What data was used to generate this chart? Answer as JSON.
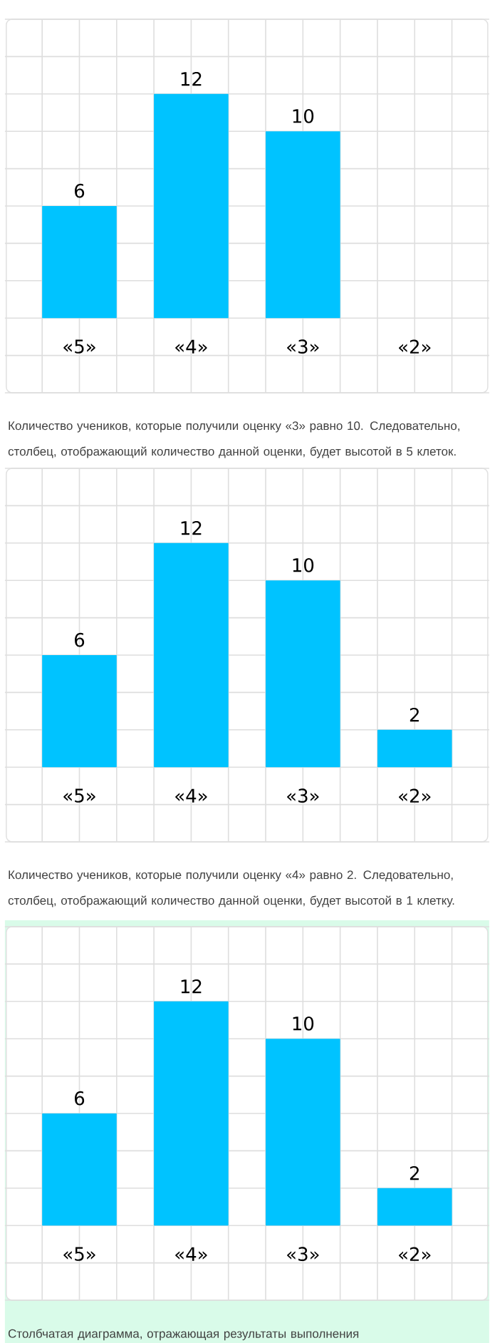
{
  "chart_data": [
    {
      "type": "bar",
      "categories": [
        "«5»",
        "«4»",
        "«3»",
        "«2»"
      ],
      "values": [
        6,
        12,
        10,
        null
      ],
      "color": "#00c3ff",
      "data_labels": true,
      "ylim": [
        -4,
        16
      ],
      "yticks": [
        {
          "value": -4,
          "label": null
        },
        {
          "value": -2,
          "label": null
        },
        {
          "value": 0,
          "label": null
        },
        {
          "value": 2,
          "label": null
        },
        {
          "value": 4,
          "label": null
        },
        {
          "value": 6,
          "label": null
        },
        {
          "value": 8,
          "label": null
        },
        {
          "value": 10,
          "label": null
        },
        {
          "value": 12,
          "label": null
        },
        {
          "value": 14,
          "label": null
        },
        {
          "value": 16,
          "label": null
        }
      ],
      "grid": true,
      "tick_labels": "x",
      "annotations": [
        "Количество учеников, которые получили оценку «3» равно 10. Следовательно, столбец, отображающий количество данной оценки, будет высотой в 5 клеток."
      ]
    },
    {
      "type": "bar",
      "categories": [
        "«5»",
        "«4»",
        "«3»",
        "«2»"
      ],
      "values": [
        6,
        12,
        10,
        2
      ],
      "color": "#00c3ff",
      "data_labels": true,
      "ylim": [
        -4,
        16
      ],
      "yticks": [
        {
          "value": -4,
          "label": null
        },
        {
          "value": -2,
          "label": null
        },
        {
          "value": 0,
          "label": null
        },
        {
          "value": 2,
          "label": null
        },
        {
          "value": 4,
          "label": null
        },
        {
          "value": 6,
          "label": null
        },
        {
          "value": 8,
          "label": null
        },
        {
          "value": 10,
          "label": null
        },
        {
          "value": 12,
          "label": null
        },
        {
          "value": 14,
          "label": null
        },
        {
          "value": 16,
          "label": null
        }
      ],
      "grid": true,
      "tick_labels": "x",
      "annotations": [
        "Количество учеников, которые получили оценку «4» равно 2. Следовательно, столбец, отображающий количество данной оценки, будет высотой в 1 клетку."
      ]
    },
    {
      "type": "bar",
      "categories": [
        "«5»",
        "«4»",
        "«3»",
        "«2»"
      ],
      "values": [
        6,
        12,
        10,
        2
      ],
      "color": "#00c3ff",
      "data_labels": true,
      "ylim": [
        -4,
        16
      ],
      "yticks": [
        {
          "value": -4,
          "label": null
        },
        {
          "value": -2,
          "label": null
        },
        {
          "value": 0,
          "label": null
        },
        {
          "value": 2,
          "label": null
        },
        {
          "value": 4,
          "label": null
        },
        {
          "value": 6,
          "label": null
        },
        {
          "value": 8,
          "label": null
        },
        {
          "value": 10,
          "label": null
        },
        {
          "value": 12,
          "label": null
        },
        {
          "value": 14,
          "label": null
        },
        {
          "value": 16,
          "label": null
        }
      ],
      "grid": true,
      "tick_labels": "x",
      "annotations": [
        "Столбчатая диаграмма, отражающая результаты выполнения"
      ]
    }
  ]
}
